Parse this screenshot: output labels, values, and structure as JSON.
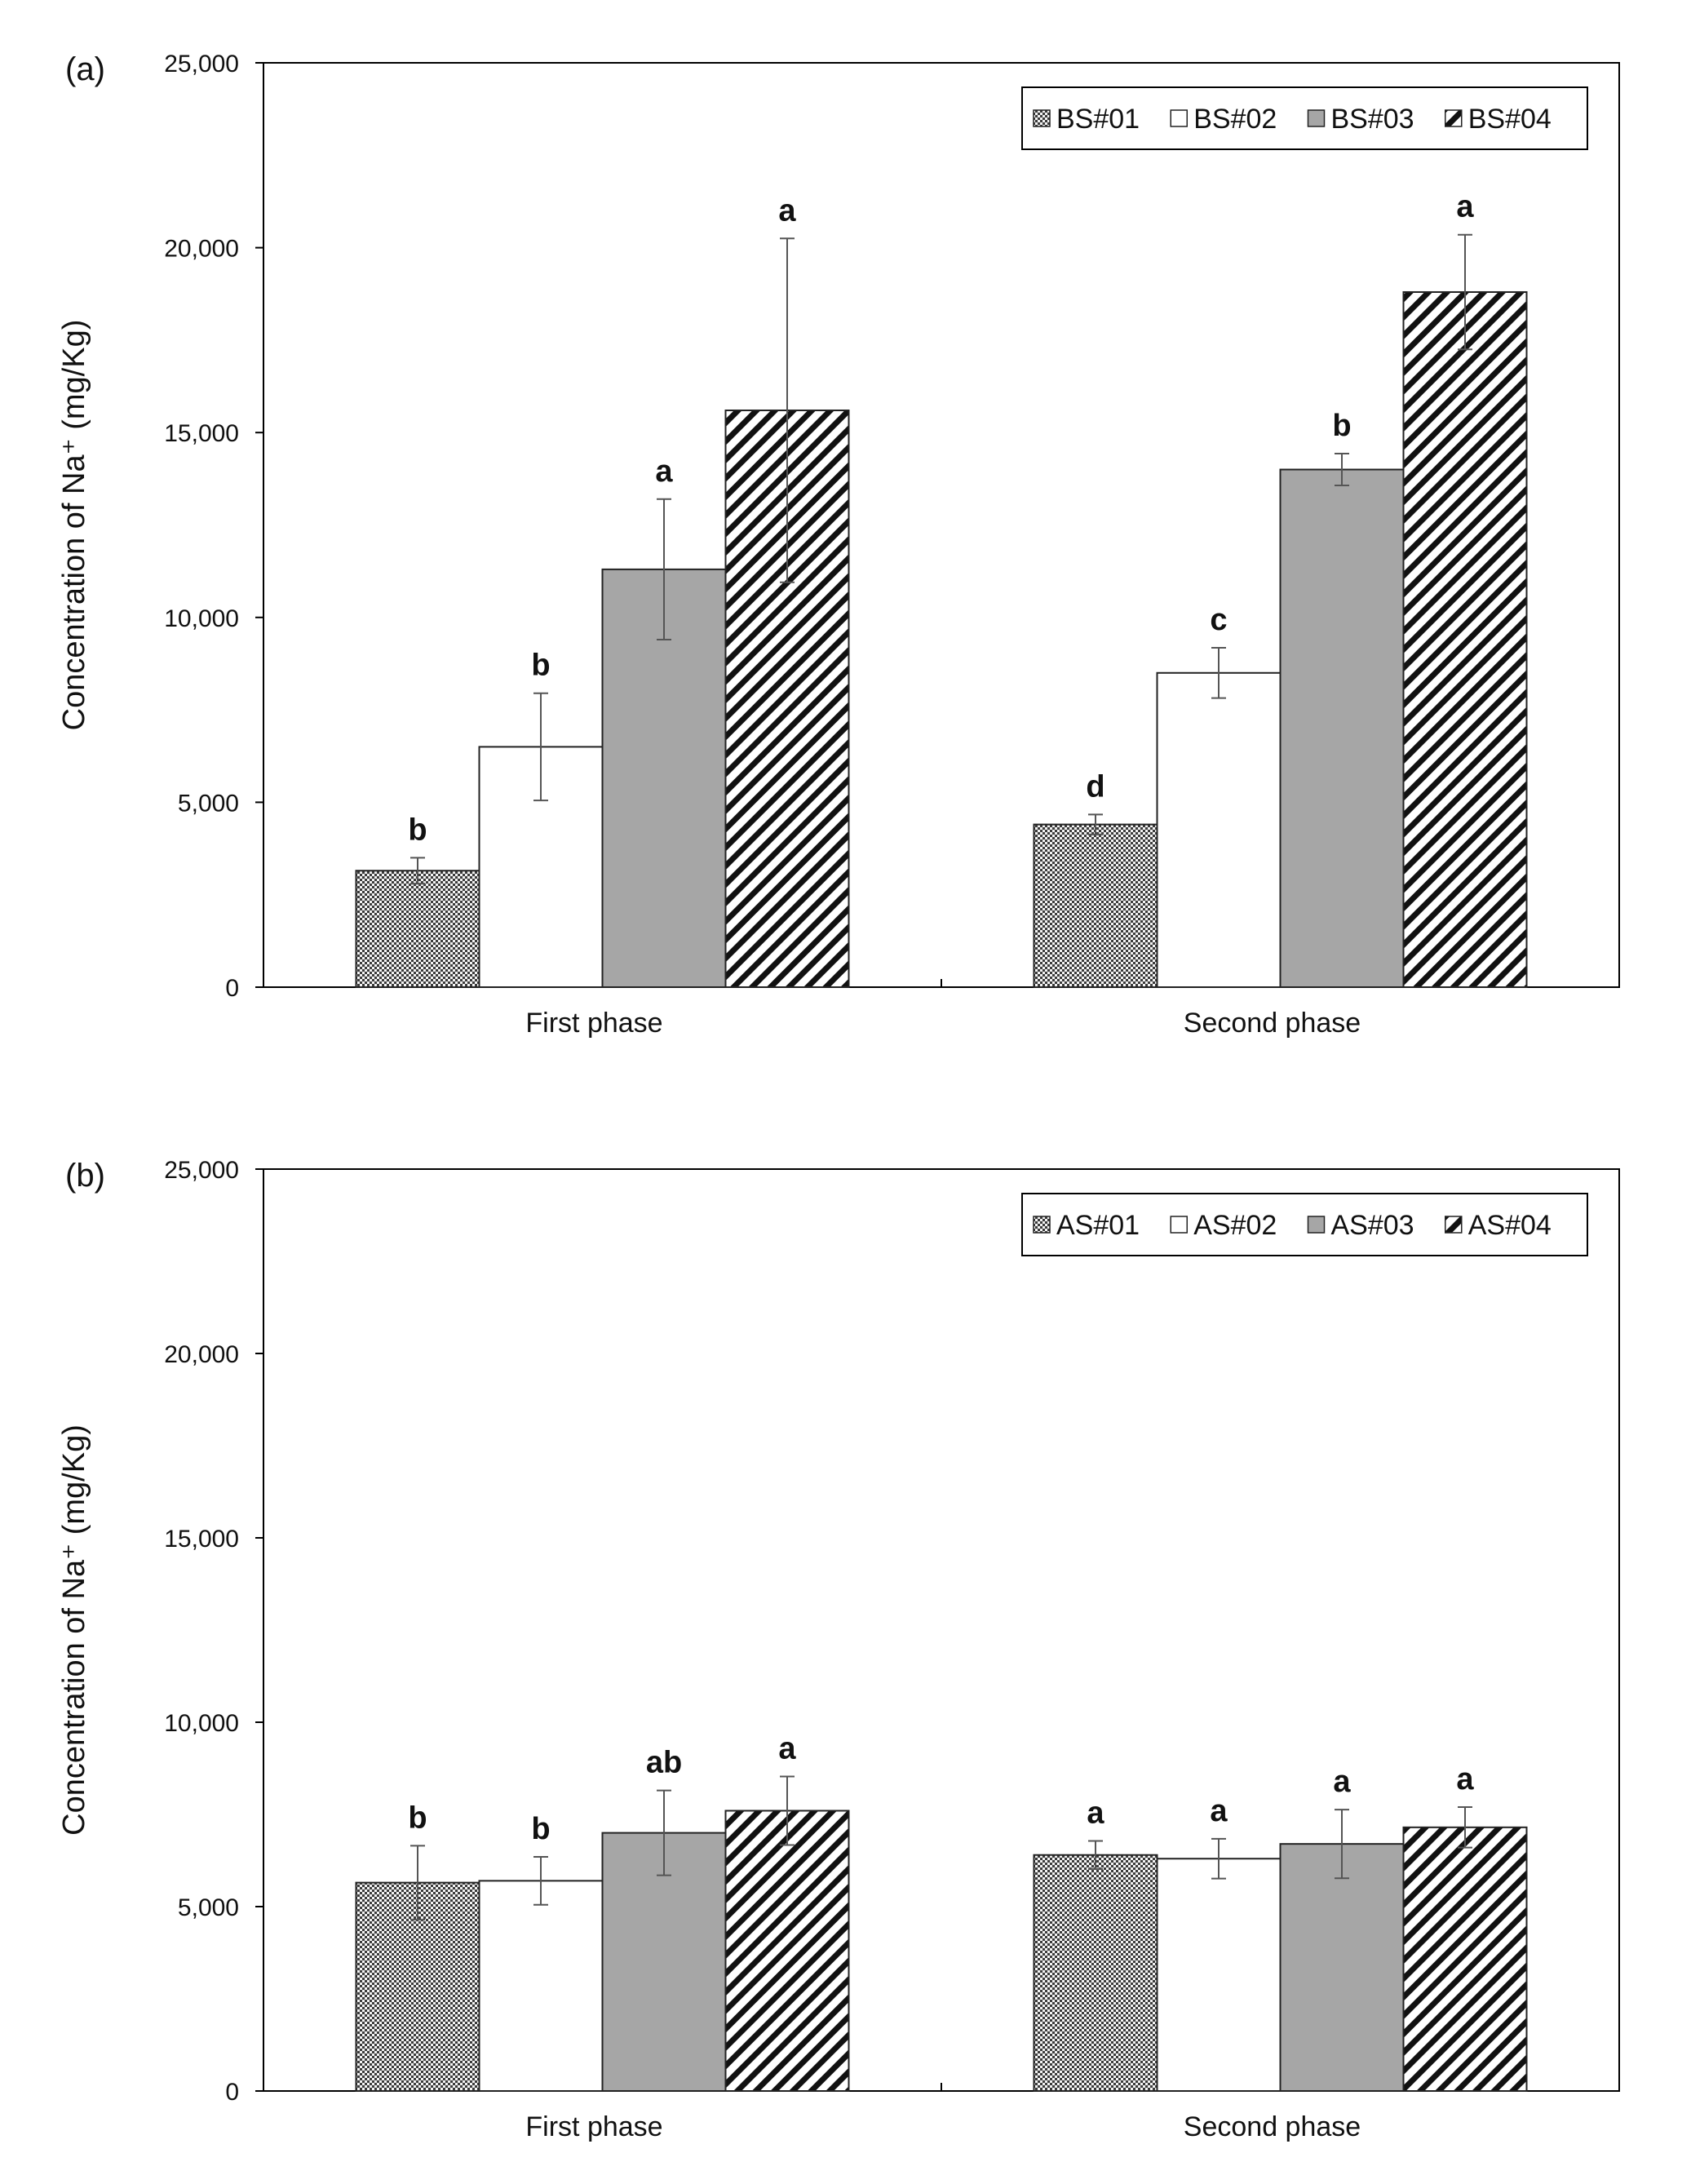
{
  "chart_data": [
    {
      "type": "bar",
      "panel_label": "(a)",
      "categories": [
        "First phase",
        "Second phase"
      ],
      "ylabel": "Concentration of Na⁺ (mg/Kg)",
      "ylim": [
        0,
        25000
      ],
      "yticks": [
        0,
        5000,
        10000,
        15000,
        20000,
        25000
      ],
      "ytick_labels": [
        "0",
        "5,000",
        "10,000",
        "15,000",
        "20,000",
        "25,000"
      ],
      "legend_position": "top-right",
      "series": [
        {
          "name": "BS#01",
          "pattern": "crosshatch",
          "values": [
            3150,
            4400
          ],
          "errors": [
            350,
            270
          ],
          "letters": [
            "b",
            "d"
          ]
        },
        {
          "name": "BS#02",
          "pattern": "white",
          "values": [
            6500,
            8500
          ],
          "errors": [
            1450,
            680
          ],
          "letters": [
            "b",
            "c"
          ]
        },
        {
          "name": "BS#03",
          "pattern": "gray",
          "values": [
            11300,
            14000
          ],
          "errors": [
            1900,
            430
          ],
          "letters": [
            "a",
            "b"
          ]
        },
        {
          "name": "BS#04",
          "pattern": "diagonal",
          "values": [
            15600,
            18800
          ],
          "errors": [
            4650,
            1550
          ],
          "letters": [
            "a",
            "a"
          ]
        }
      ]
    },
    {
      "type": "bar",
      "panel_label": "(b)",
      "categories": [
        "First phase",
        "Second phase"
      ],
      "ylabel": "Concentration of Na⁺ (mg/Kg)",
      "ylim": [
        0,
        25000
      ],
      "yticks": [
        0,
        5000,
        10000,
        15000,
        20000,
        25000
      ],
      "ytick_labels": [
        "0",
        "5,000",
        "10,000",
        "15,000",
        "20,000",
        "25,000"
      ],
      "legend_position": "top-right",
      "series": [
        {
          "name": "AS#01",
          "pattern": "crosshatch",
          "values": [
            5650,
            6400
          ],
          "errors": [
            1000,
            380
          ],
          "letters": [
            "b",
            "a"
          ]
        },
        {
          "name": "AS#02",
          "pattern": "white",
          "values": [
            5700,
            6300
          ],
          "errors": [
            650,
            540
          ],
          "letters": [
            "b",
            "a"
          ]
        },
        {
          "name": "AS#03",
          "pattern": "gray",
          "values": [
            7000,
            6700
          ],
          "errors": [
            1150,
            930
          ],
          "letters": [
            "ab",
            "a"
          ]
        },
        {
          "name": "AS#04",
          "pattern": "diagonal",
          "values": [
            7600,
            7150
          ],
          "errors": [
            930,
            550
          ],
          "letters": [
            "a",
            "a"
          ]
        }
      ]
    }
  ],
  "colors": {
    "gray_bar": "#a6a6a6",
    "axis": "#000000",
    "error_bar": "#555555"
  }
}
